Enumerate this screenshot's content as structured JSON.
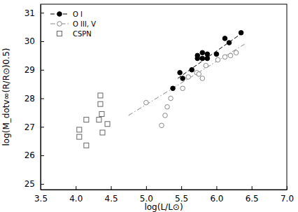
{
  "chart_data": {
    "type": "scatter",
    "x_label": "log(L/L⊙)",
    "y_label": "log(M_dotv∞(R/R⊙)0.5)",
    "xlim": [
      3.5,
      7.0
    ],
    "xticks": [
      3.5,
      {
        "value": 4,
        "label": "4.0"
      },
      4.5,
      {
        "value": 5,
        "label": "5.0"
      },
      5.5,
      {
        "value": 6,
        "label": "6.0"
      },
      6.5,
      {
        "value": 7,
        "label": "7.0"
      }
    ],
    "ylim": [
      24.8,
      31.3
    ],
    "yticks": [
      25,
      26,
      27,
      28,
      29,
      30,
      31
    ],
    "legend": "upper left",
    "series": [
      {
        "name": "O I",
        "color": "#000000",
        "marker": "filled-circle",
        "line_style": "dashed",
        "x": [
          5.38,
          5.48,
          5.52,
          5.65,
          5.73,
          5.73,
          5.8,
          5.8,
          5.87,
          5.87,
          6.0,
          6.12,
          6.18,
          6.35
        ],
        "values": [
          28.35,
          28.9,
          28.7,
          29.0,
          29.5,
          29.4,
          29.6,
          29.4,
          29.55,
          29.4,
          29.55,
          30.1,
          29.95,
          30.3
        ],
        "fit_x": [
          5.45,
          6.4
        ],
        "fit_values": [
          28.7,
          30.35
        ]
      },
      {
        "name": "O III, V",
        "color": "#888888",
        "marker": "open-circle",
        "line_style": "dashdot",
        "x": [
          5.0,
          5.22,
          5.27,
          5.3,
          5.35,
          5.52,
          5.6,
          5.72,
          5.75,
          5.8,
          5.85,
          6.02,
          6.12,
          6.2,
          6.28
        ],
        "values": [
          27.85,
          27.05,
          27.4,
          27.7,
          28.0,
          28.35,
          28.75,
          28.9,
          28.85,
          28.7,
          29.15,
          29.35,
          29.45,
          29.5,
          29.6
        ],
        "fit_x": [
          4.75,
          6.4
        ],
        "fit_values": [
          27.4,
          29.9
        ]
      },
      {
        "name": "CSPN",
        "color": "#666666",
        "marker": "open-square",
        "x": [
          4.05,
          4.05,
          4.15,
          4.15,
          4.33,
          4.35,
          4.35,
          4.37,
          4.38,
          4.45
        ],
        "values": [
          26.9,
          26.65,
          27.25,
          26.35,
          27.25,
          27.8,
          28.1,
          27.45,
          26.8,
          27.1
        ]
      }
    ]
  }
}
